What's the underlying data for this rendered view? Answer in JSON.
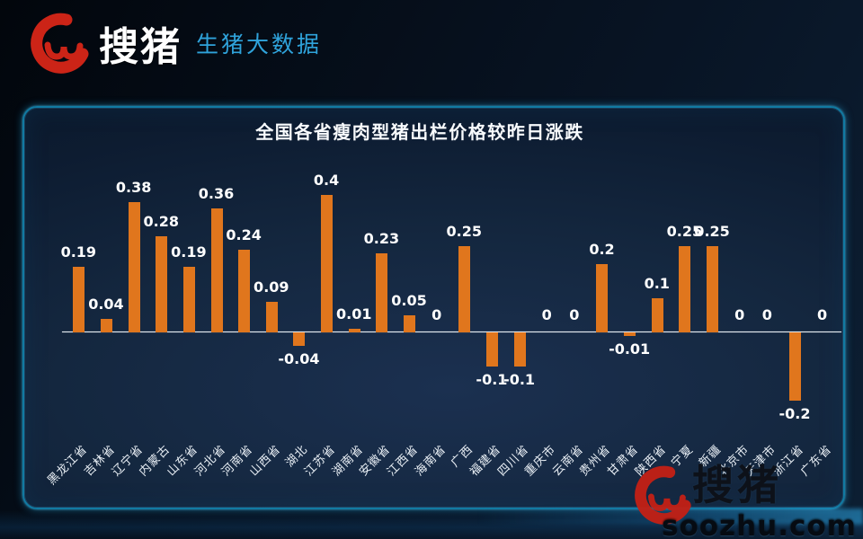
{
  "header": {
    "brand": "搜猪",
    "product": "生猪大数据",
    "brand_color": "#ffffff",
    "product_color": "#2fa3db",
    "logo_icon": "soozhu-pig-brushstroke-icon",
    "logo_color": "#cc2417"
  },
  "chart_data": {
    "type": "bar",
    "title": "全国各省瘦肉型猪出栏价格较昨日涨跌",
    "categories": [
      "黑龙江省",
      "吉林省",
      "辽宁省",
      "内蒙古",
      "山东省",
      "河北省",
      "河南省",
      "山西省",
      "湖北",
      "江苏省",
      "湖南省",
      "安徽省",
      "江西省",
      "海南省",
      "广西",
      "福建省",
      "四川省",
      "重庆市",
      "云南省",
      "贵州省",
      "甘肃省",
      "陕西省",
      "宁夏",
      "新疆",
      "北京市",
      "天津市",
      "浙江省",
      "广东省"
    ],
    "values": [
      0.19,
      0.04,
      0.38,
      0.28,
      0.19,
      0.36,
      0.24,
      0.09,
      -0.04,
      0.4,
      0.01,
      0.23,
      0.05,
      0,
      0.25,
      -0.1,
      -0.1,
      0,
      0,
      0.2,
      -0.01,
      0.1,
      0.25,
      0.25,
      0,
      0,
      -0.2,
      0
    ],
    "value_labels": [
      "0.19",
      "0.04",
      "0.38",
      "0.28",
      "0.19",
      "0.36",
      "0.24",
      "0.09",
      "-0.04",
      "0.4",
      "0.01",
      "0.23",
      "0.05",
      "0",
      "0.25",
      "-0.1",
      "-0.1",
      "0",
      "0",
      "0.2",
      "-0.01",
      "0.1",
      "0.25",
      "0.25",
      "0",
      "0",
      "-0.2",
      "0"
    ],
    "xlabel": "",
    "ylabel": "",
    "ylim": [
      -0.25,
      0.45
    ],
    "grid": false,
    "legend_position": "none",
    "bar_color": "#e0761d",
    "axis_color": "#e4ebf1",
    "value_label_color": "#ffffff",
    "category_label_color": "#e9eff5"
  },
  "panel": {
    "border_color": "#117aa2"
  },
  "watermark": {
    "brand": "搜猪",
    "site": "soozhu.com",
    "icon": "soozhu-pig-brushstroke-icon"
  }
}
